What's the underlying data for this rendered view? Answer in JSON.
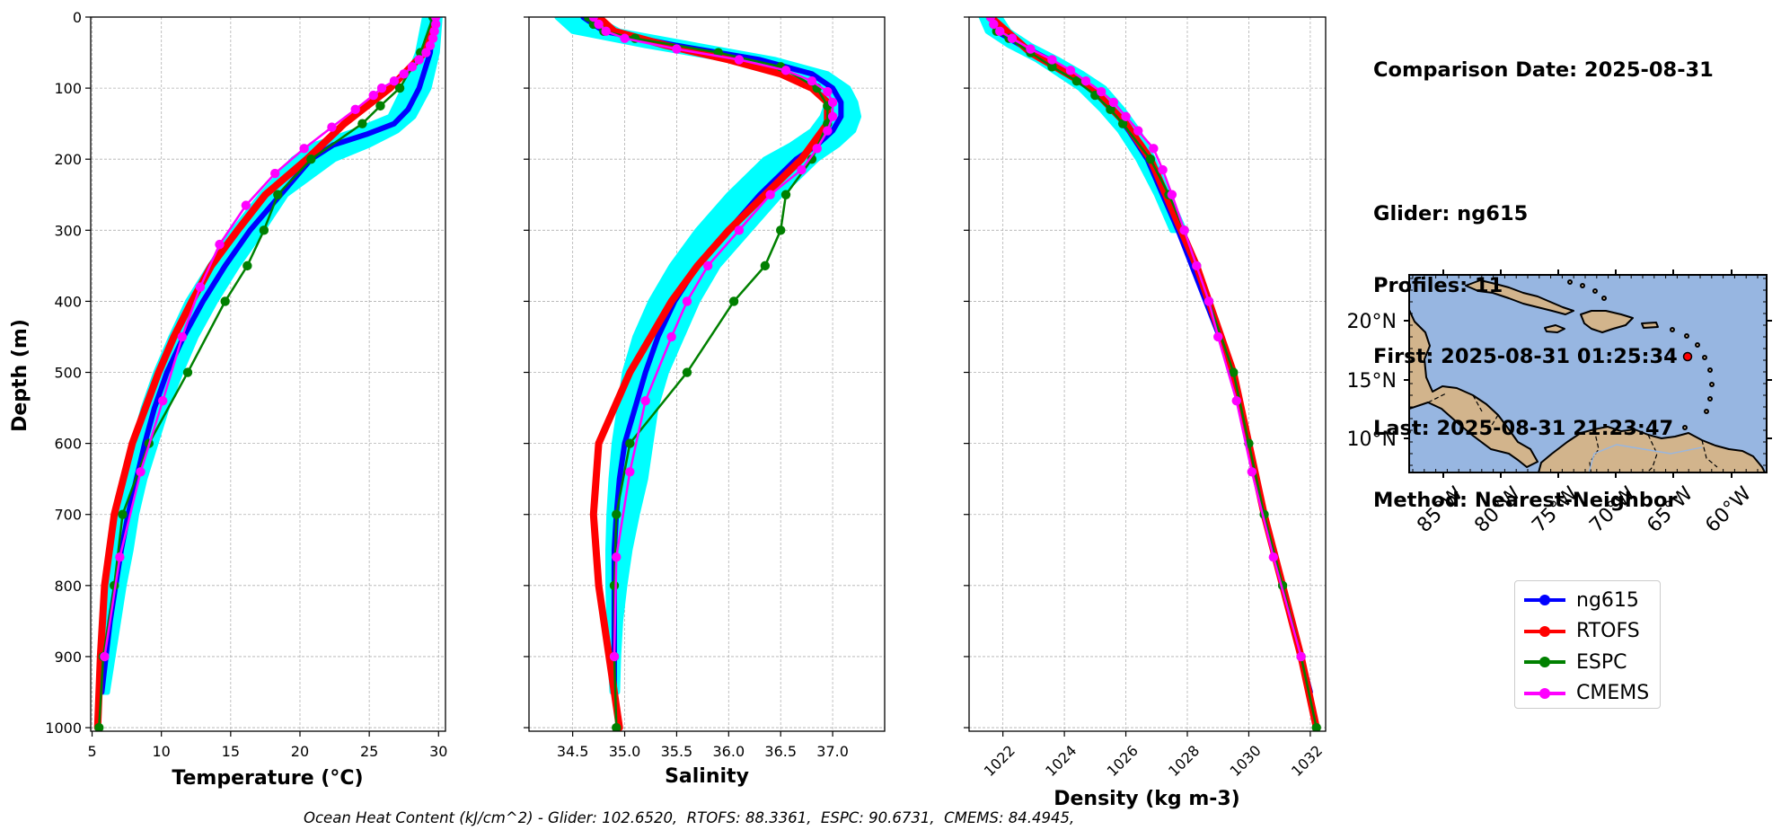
{
  "info": {
    "lines": [
      "Comparison Date: 2025-08-31",
      "",
      "Glider: ng615",
      "Profiles: 11",
      "First: 2025-08-31 01:25:34",
      "Last: 2025-08-31 21:23:47",
      "Method: Nearest-Neighbor"
    ]
  },
  "footer": {
    "ohc_text": "Ocean Heat Content (kJ/cm^2) - Glider: 102.6520,  RTOFS: 88.3361,  ESPC: 90.6731,  CMEMS: 84.4945,"
  },
  "legend": [
    {
      "label": "ng615",
      "color": "#0000ff"
    },
    {
      "label": "RTOFS",
      "color": "#ff0000"
    },
    {
      "label": "ESPC",
      "color": "#008000"
    },
    {
      "label": "CMEMS",
      "color": "#ff00ff"
    }
  ],
  "map": {
    "lon_labels": [
      "85°W",
      "80°W",
      "75°W",
      "70°W",
      "65°W",
      "60°W"
    ],
    "lat_labels": [
      "20°N",
      "15°N",
      "10°N"
    ],
    "glider_position": {
      "lon": -65.0,
      "lat": 17.0
    },
    "colors": {
      "ocean": "#97b6e1",
      "land": "#d2b48c",
      "glider": "#ff0000"
    }
  },
  "chart_data": [
    {
      "type": "line",
      "xlabel": "Temperature (°C)",
      "ylabel": "Depth (m)",
      "xlim": [
        4.9,
        30.5
      ],
      "ylim": [
        1005,
        0
      ],
      "xticks": [
        5,
        10,
        15,
        20,
        25,
        30
      ],
      "yticks": [
        0,
        100,
        200,
        300,
        400,
        500,
        600,
        700,
        800,
        900,
        1000
      ],
      "grid": true,
      "glider_envelope": {
        "color": "#00ffff",
        "depth": [
          0,
          50,
          100,
          140,
          160,
          180,
          200,
          250,
          300,
          350,
          400,
          450,
          500,
          550,
          600,
          650,
          700,
          750,
          800,
          850,
          900,
          950
        ],
        "x_min": [
          29.0,
          28.5,
          27.5,
          26.5,
          24.0,
          21.0,
          19.5,
          17.2,
          15.2,
          13.5,
          11.9,
          10.7,
          9.6,
          8.7,
          8.0,
          7.5,
          7.0,
          6.6,
          6.3,
          6.0,
          5.8,
          5.6
        ],
        "x_max": [
          30.1,
          29.9,
          29.3,
          28.2,
          27.0,
          25.0,
          22.5,
          19.0,
          17.3,
          15.5,
          13.9,
          12.5,
          11.4,
          10.4,
          9.6,
          8.8,
          8.2,
          7.8,
          7.3,
          6.9,
          6.5,
          6.1
        ]
      },
      "series": [
        {
          "name": "ng615",
          "color": "#0000ff",
          "width": 6,
          "markers": false,
          "depth": [
            0,
            50,
            100,
            130,
            150,
            165,
            180,
            200,
            250,
            300,
            350,
            400,
            450,
            500,
            550,
            600,
            650,
            700,
            750,
            800,
            850,
            900,
            950
          ],
          "values": [
            29.6,
            29.4,
            28.6,
            27.8,
            26.8,
            24.8,
            22.4,
            20.8,
            18.6,
            16.4,
            14.6,
            13.0,
            11.6,
            10.4,
            9.5,
            8.8,
            8.2,
            7.6,
            7.1,
            6.7,
            6.3,
            6.0,
            5.7
          ]
        },
        {
          "name": "RTOFS",
          "color": "#ff0000",
          "width": 8,
          "markers": false,
          "depth": [
            0,
            50,
            100,
            150,
            200,
            250,
            300,
            350,
            400,
            450,
            500,
            600,
            700,
            800,
            900,
            1000
          ],
          "values": [
            29.8,
            29.0,
            26.5,
            23.2,
            20.5,
            17.5,
            15.5,
            13.6,
            12.2,
            10.9,
            9.8,
            7.9,
            6.6,
            5.9,
            5.6,
            5.4
          ]
        },
        {
          "name": "ESPC",
          "color": "#008000",
          "width": 2.5,
          "markers": true,
          "depth": [
            0,
            50,
            100,
            125,
            150,
            200,
            250,
            300,
            350,
            400,
            500,
            600,
            700,
            800,
            900,
            1000
          ],
          "values": [
            29.6,
            28.7,
            27.2,
            25.8,
            24.5,
            20.8,
            18.4,
            17.4,
            16.2,
            14.6,
            11.9,
            9.1,
            7.2,
            6.6,
            5.8,
            5.5
          ]
        },
        {
          "name": "CMEMS",
          "color": "#ff00ff",
          "width": 2.5,
          "markers": true,
          "depth": [
            0,
            10,
            20,
            30,
            40,
            50,
            60,
            70,
            80,
            90,
            100,
            110,
            130,
            155,
            185,
            220,
            265,
            320,
            380,
            450,
            540,
            640,
            760,
            900
          ],
          "values": [
            29.8,
            29.8,
            29.7,
            29.6,
            29.4,
            29.1,
            28.6,
            28.1,
            27.5,
            26.8,
            25.9,
            25.3,
            24.0,
            22.3,
            20.3,
            18.2,
            16.1,
            14.2,
            12.8,
            11.5,
            10.1,
            8.5,
            7.0,
            5.9
          ]
        }
      ]
    },
    {
      "type": "line",
      "xlabel": "Salinity",
      "ylabel": "",
      "xlim": [
        34.08,
        37.5
      ],
      "ylim": [
        1005,
        0
      ],
      "xticks": [
        34.5,
        35.0,
        35.5,
        36.0,
        36.5,
        37.0
      ],
      "xticklabels": [
        "34.5",
        "35.0",
        "35.5",
        "36.0",
        "36.5",
        "37.0"
      ],
      "yticks": [
        0,
        100,
        200,
        300,
        400,
        500,
        600,
        700,
        800,
        900,
        1000
      ],
      "grid": true,
      "glider_envelope": {
        "color": "#00ffff",
        "depth": [
          0,
          20,
          40,
          60,
          80,
          100,
          120,
          140,
          160,
          180,
          200,
          250,
          300,
          350,
          400,
          450,
          500,
          550,
          600,
          650,
          700,
          750,
          800,
          850,
          900,
          950
        ],
        "x_min": [
          34.35,
          34.5,
          35.2,
          36.0,
          36.6,
          36.9,
          36.95,
          36.9,
          36.8,
          36.6,
          36.35,
          36.0,
          35.7,
          35.45,
          35.25,
          35.1,
          35.0,
          34.95,
          34.9,
          34.87,
          34.85,
          34.84,
          34.84,
          34.85,
          34.86,
          34.88
        ],
        "x_max": [
          34.7,
          34.95,
          35.7,
          36.45,
          36.95,
          37.15,
          37.22,
          37.25,
          37.2,
          37.05,
          36.85,
          36.5,
          36.2,
          35.9,
          35.7,
          35.55,
          35.4,
          35.3,
          35.25,
          35.2,
          35.12,
          35.05,
          35.0,
          34.96,
          34.94,
          34.93
        ]
      },
      "series": [
        {
          "name": "ng615",
          "color": "#0000ff",
          "width": 6,
          "markers": false,
          "depth": [
            0,
            20,
            40,
            60,
            80,
            100,
            120,
            140,
            160,
            180,
            200,
            250,
            300,
            350,
            400,
            450,
            500,
            550,
            600,
            650,
            700,
            750,
            800,
            850,
            900,
            950
          ],
          "values": [
            34.6,
            34.8,
            35.5,
            36.3,
            36.8,
            37.0,
            37.08,
            37.08,
            37.0,
            36.85,
            36.65,
            36.3,
            36.0,
            35.7,
            35.48,
            35.32,
            35.2,
            35.1,
            35.0,
            34.95,
            34.92,
            34.9,
            34.9,
            34.9,
            34.9,
            34.9
          ]
        },
        {
          "name": "RTOFS",
          "color": "#ff0000",
          "width": 8,
          "markers": false,
          "depth": [
            0,
            20,
            40,
            60,
            80,
            100,
            120,
            150,
            200,
            250,
            300,
            350,
            400,
            450,
            500,
            600,
            700,
            800,
            900,
            1000
          ],
          "values": [
            34.75,
            34.9,
            35.4,
            36.0,
            36.5,
            36.8,
            36.95,
            36.95,
            36.7,
            36.35,
            36.0,
            35.7,
            35.45,
            35.25,
            35.05,
            34.75,
            34.7,
            34.75,
            34.85,
            34.95
          ]
        },
        {
          "name": "ESPC",
          "color": "#008000",
          "width": 2.5,
          "markers": true,
          "depth": [
            0,
            10,
            20,
            30,
            50,
            70,
            100,
            125,
            150,
            200,
            250,
            300,
            350,
            400,
            500,
            600,
            700,
            800,
            900,
            1000
          ],
          "values": [
            34.65,
            34.7,
            34.8,
            35.1,
            35.9,
            36.5,
            36.85,
            36.95,
            36.95,
            36.8,
            36.55,
            36.5,
            36.35,
            36.05,
            35.6,
            35.05,
            34.92,
            34.9,
            34.9,
            34.92
          ]
        },
        {
          "name": "CMEMS",
          "color": "#ff00ff",
          "width": 2.5,
          "markers": true,
          "depth": [
            0,
            10,
            20,
            30,
            45,
            60,
            75,
            90,
            105,
            120,
            140,
            160,
            185,
            215,
            250,
            300,
            350,
            400,
            450,
            540,
            640,
            760,
            900
          ],
          "values": [
            34.7,
            34.75,
            34.82,
            35.0,
            35.5,
            36.1,
            36.55,
            36.8,
            36.95,
            37.0,
            37.0,
            36.95,
            36.85,
            36.7,
            36.4,
            36.1,
            35.8,
            35.6,
            35.45,
            35.2,
            35.05,
            34.92,
            34.9
          ]
        }
      ]
    },
    {
      "type": "line",
      "xlabel": "Density (kg m-3)",
      "ylabel": "",
      "xlim": [
        1020.9,
        1032.5
      ],
      "ylim": [
        1005,
        0
      ],
      "xticks": [
        1022,
        1024,
        1026,
        1028,
        1030,
        1032
      ],
      "yticks": [
        0,
        100,
        200,
        300,
        400,
        500,
        600,
        700,
        800,
        900,
        1000
      ],
      "grid": true,
      "glider_envelope": {
        "color": "#00ffff",
        "depth": [
          0,
          20,
          40,
          60,
          80,
          100,
          130,
          160,
          200,
          250,
          300
        ],
        "x_min": [
          1021.3,
          1021.5,
          1022.2,
          1023.1,
          1023.8,
          1024.5,
          1025.2,
          1025.8,
          1026.4,
          1027.0,
          1027.5
        ],
        "x_max": [
          1021.9,
          1022.2,
          1022.9,
          1023.8,
          1024.6,
          1025.3,
          1025.9,
          1026.4,
          1026.9,
          1027.4,
          1027.9
        ]
      },
      "series": [
        {
          "name": "ng615",
          "color": "#0000ff",
          "width": 6,
          "markers": false,
          "depth": [
            0,
            20,
            40,
            60,
            80,
            100,
            130,
            160,
            200,
            250,
            300,
            400,
            500,
            600,
            700,
            800,
            900,
            950
          ],
          "values": [
            1021.6,
            1021.8,
            1022.6,
            1023.5,
            1024.2,
            1024.9,
            1025.6,
            1026.1,
            1026.7,
            1027.2,
            1027.7,
            1028.6,
            1029.5,
            1030.0,
            1030.5,
            1031.1,
            1031.7,
            1032.0
          ]
        },
        {
          "name": "RTOFS",
          "color": "#ff0000",
          "width": 8,
          "markers": false,
          "depth": [
            0,
            50,
            100,
            150,
            200,
            250,
            300,
            350,
            400,
            450,
            500,
            600,
            700,
            800,
            900,
            1000
          ],
          "values": [
            1021.6,
            1022.9,
            1024.9,
            1026.0,
            1026.8,
            1027.3,
            1027.8,
            1028.3,
            1028.7,
            1029.1,
            1029.5,
            1030.0,
            1030.5,
            1031.1,
            1031.7,
            1032.2
          ]
        },
        {
          "name": "ESPC",
          "color": "#008000",
          "width": 2.5,
          "markers": true,
          "depth": [
            0,
            10,
            20,
            30,
            50,
            70,
            90,
            110,
            130,
            150,
            200,
            250,
            300,
            350,
            400,
            500,
            600,
            700,
            800,
            900,
            1000
          ],
          "values": [
            1021.6,
            1021.7,
            1021.8,
            1022.2,
            1022.9,
            1023.6,
            1024.4,
            1025.0,
            1025.5,
            1025.9,
            1026.8,
            1027.4,
            1027.9,
            1028.3,
            1028.7,
            1029.5,
            1030.0,
            1030.5,
            1031.1,
            1031.7,
            1032.2
          ]
        },
        {
          "name": "CMEMS",
          "color": "#ff00ff",
          "width": 2.5,
          "markers": true,
          "depth": [
            0,
            10,
            20,
            30,
            45,
            60,
            75,
            90,
            105,
            120,
            140,
            160,
            185,
            215,
            250,
            300,
            350,
            400,
            450,
            540,
            640,
            760,
            900
          ],
          "values": [
            1021.6,
            1021.7,
            1021.9,
            1022.3,
            1022.9,
            1023.6,
            1024.2,
            1024.7,
            1025.2,
            1025.6,
            1026.0,
            1026.4,
            1026.9,
            1027.2,
            1027.5,
            1027.9,
            1028.3,
            1028.7,
            1029.0,
            1029.6,
            1030.1,
            1030.8,
            1031.7
          ]
        }
      ]
    }
  ]
}
